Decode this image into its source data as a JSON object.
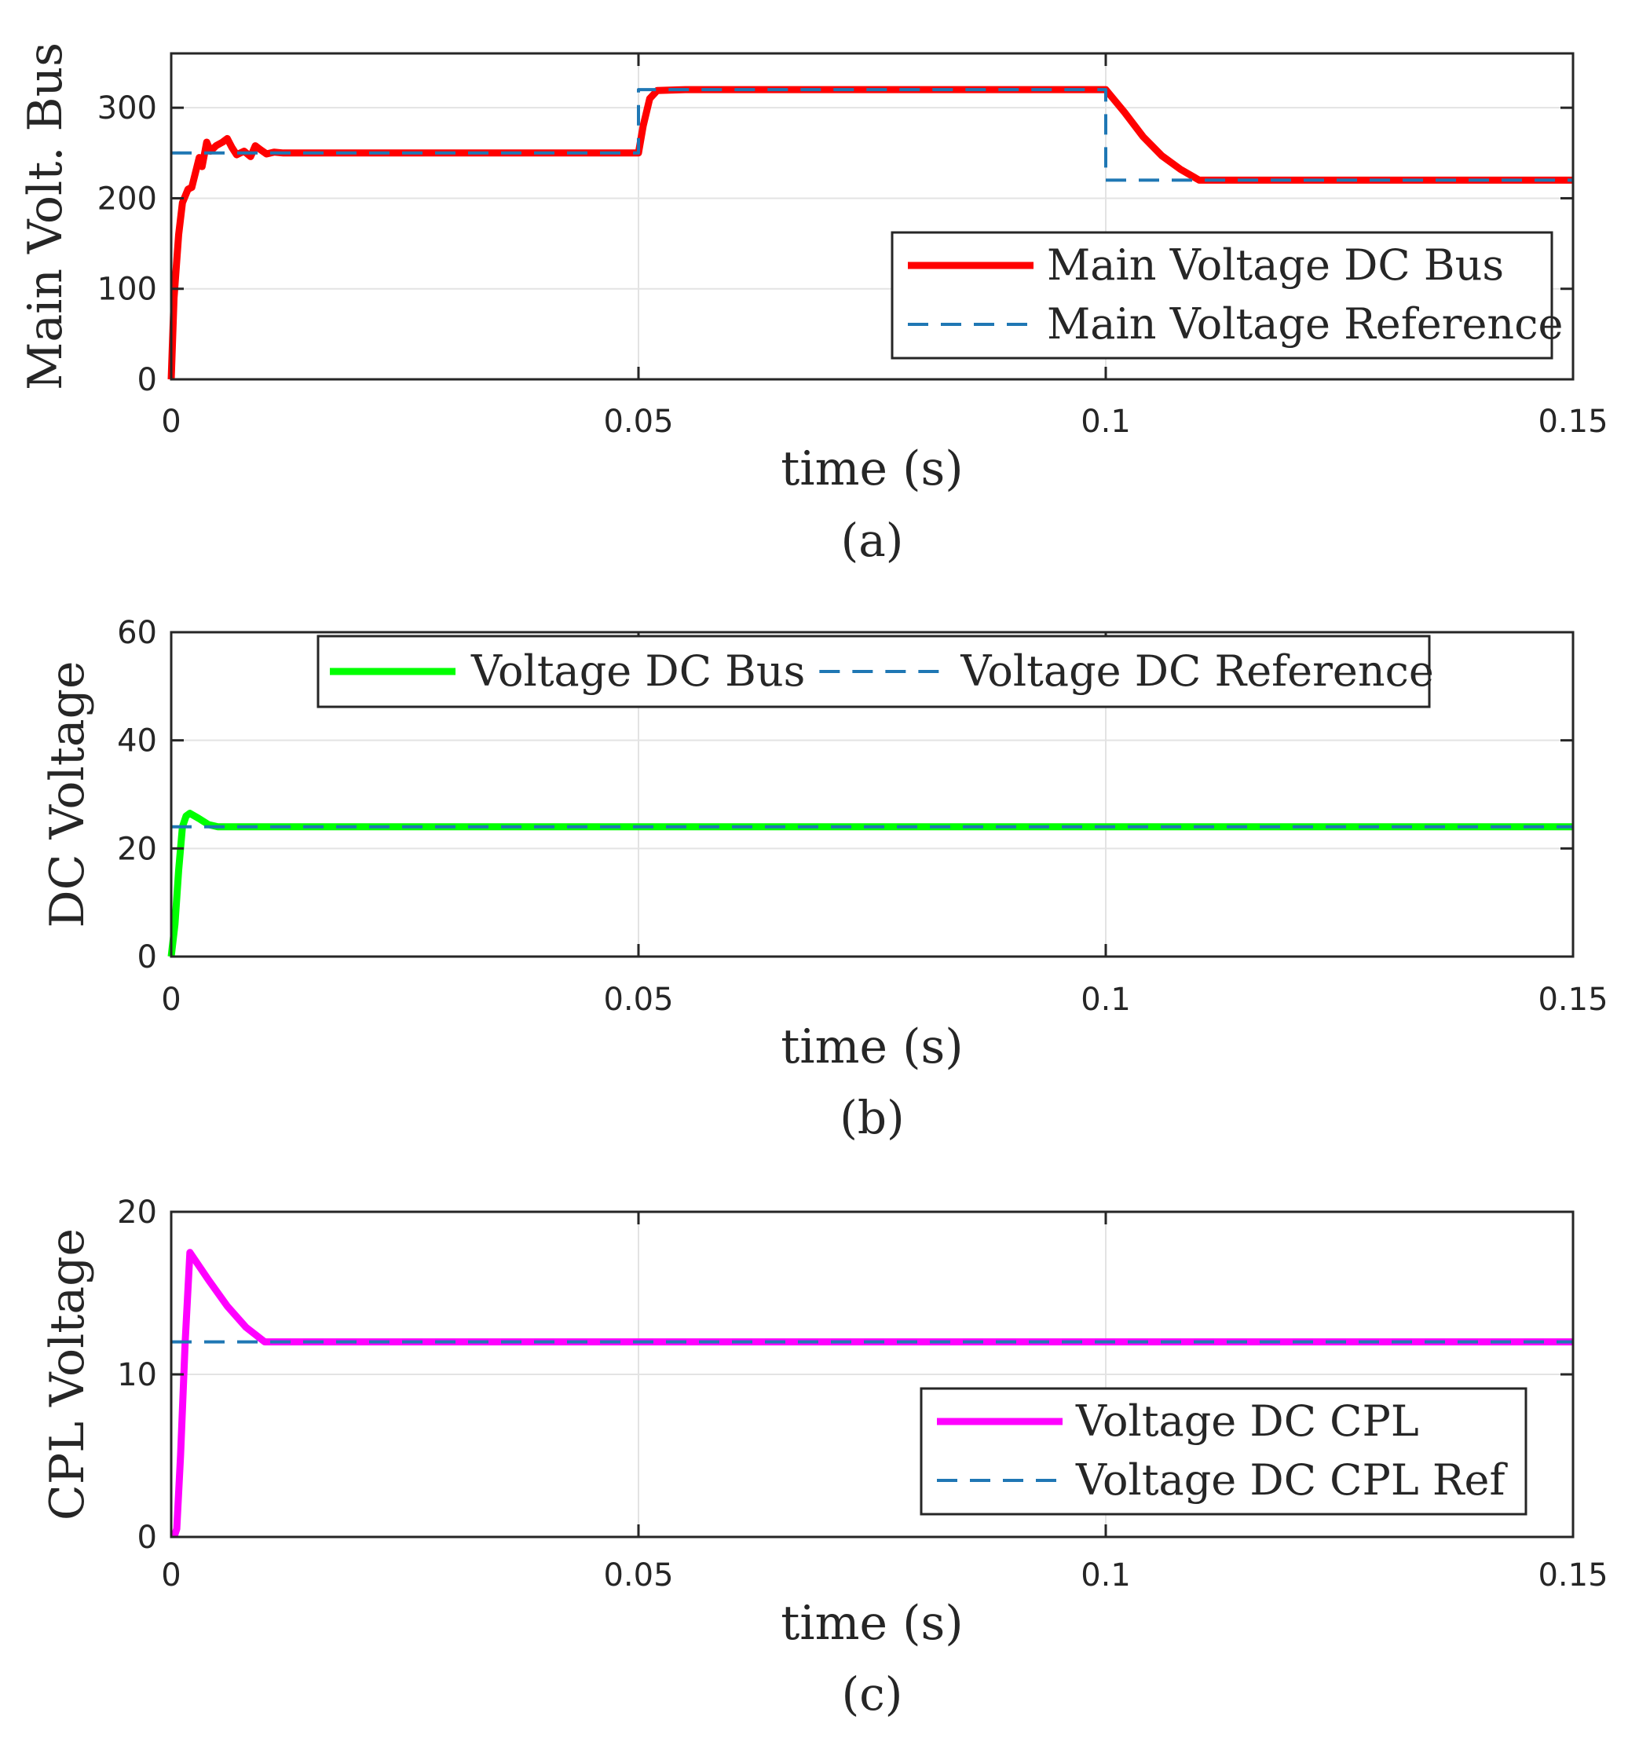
{
  "chart_data": [
    {
      "type": "line",
      "caption": "(a)",
      "xlabel": "time (s)",
      "ylabel": "Main Volt. Bus",
      "xlim": [
        0,
        0.15
      ],
      "ylim": [
        0,
        360
      ],
      "xticks": [
        0,
        0.05,
        0.1,
        0.15
      ],
      "xtick_labels": [
        "0",
        "0.05",
        "0.1",
        "0.15"
      ],
      "yticks": [
        0,
        100,
        200,
        300
      ],
      "ytick_labels": [
        "0",
        "100",
        "200",
        "300"
      ],
      "grid": true,
      "legend_position": "bottom-right",
      "series": [
        {
          "name": "Main Voltage DC Bus",
          "color": "#ff0000",
          "style": "solid",
          "x": [
            0,
            0.0003,
            0.0008,
            0.0012,
            0.0018,
            0.0022,
            0.003,
            0.0033,
            0.0038,
            0.0042,
            0.0048,
            0.0055,
            0.006,
            0.0065,
            0.007,
            0.0078,
            0.0085,
            0.009,
            0.0095,
            0.0102,
            0.011,
            0.012,
            0.014,
            0.05,
            0.0505,
            0.0512,
            0.052,
            0.055,
            0.1,
            0.102,
            0.104,
            0.106,
            0.108,
            0.11,
            0.15
          ],
          "values": [
            0,
            90,
            160,
            195,
            210,
            212,
            245,
            235,
            262,
            252,
            258,
            262,
            266,
            256,
            248,
            252,
            246,
            258,
            254,
            249,
            251,
            250,
            250,
            250,
            280,
            310,
            319,
            320,
            320,
            295,
            268,
            247,
            232,
            220,
            220
          ]
        },
        {
          "name": "Main Voltage Reference",
          "color": "#1f77b4",
          "style": "dashed",
          "x": [
            0,
            0.05,
            0.05,
            0.1,
            0.1,
            0.15
          ],
          "values": [
            250,
            250,
            320,
            320,
            220,
            220
          ]
        }
      ]
    },
    {
      "type": "line",
      "caption": "(b)",
      "xlabel": "time (s)",
      "ylabel": "DC Voltage",
      "xlim": [
        0,
        0.15
      ],
      "ylim": [
        0,
        60
      ],
      "xticks": [
        0,
        0.05,
        0.1,
        0.15
      ],
      "xtick_labels": [
        "0",
        "0.05",
        "0.1",
        "0.15"
      ],
      "yticks": [
        0,
        20,
        40,
        60
      ],
      "ytick_labels": [
        "0",
        "20",
        "40",
        "60"
      ],
      "grid": true,
      "legend_position": "top-center",
      "series": [
        {
          "name": "Voltage DC Bus",
          "color": "#00ff00",
          "style": "solid",
          "x": [
            0,
            0.0004,
            0.0008,
            0.0012,
            0.0016,
            0.002,
            0.003,
            0.004,
            0.005,
            0.15
          ],
          "values": [
            0,
            6,
            16,
            24,
            26,
            26.5,
            25.5,
            24.4,
            24,
            24
          ]
        },
        {
          "name": "Voltage DC Reference",
          "color": "#1f77b4",
          "style": "dashed",
          "x": [
            0,
            0.15
          ],
          "values": [
            24,
            24
          ]
        }
      ]
    },
    {
      "type": "line",
      "caption": "(c)",
      "xlabel": "time (s)",
      "ylabel": "CPL Voltage",
      "xlim": [
        0,
        0.15
      ],
      "ylim": [
        0,
        20
      ],
      "xticks": [
        0,
        0.05,
        0.1,
        0.15
      ],
      "xtick_labels": [
        "0",
        "0.05",
        "0.1",
        "0.15"
      ],
      "yticks": [
        0,
        10,
        20
      ],
      "ytick_labels": [
        "0",
        "10",
        "20"
      ],
      "grid": true,
      "legend_position": "bottom-right",
      "series": [
        {
          "name": "Voltage DC CPL",
          "color": "#ff00ff",
          "style": "solid",
          "x": [
            0.0003,
            0.0006,
            0.001,
            0.0015,
            0.002,
            0.004,
            0.006,
            0.008,
            0.01,
            0.15
          ],
          "values": [
            0,
            0.5,
            5,
            12,
            17.5,
            15.8,
            14.2,
            12.9,
            12,
            12
          ]
        },
        {
          "name": "Voltage DC CPL Ref",
          "color": "#1f77b4",
          "style": "dashed",
          "x": [
            0,
            0.15
          ],
          "values": [
            12,
            12
          ]
        }
      ]
    }
  ]
}
